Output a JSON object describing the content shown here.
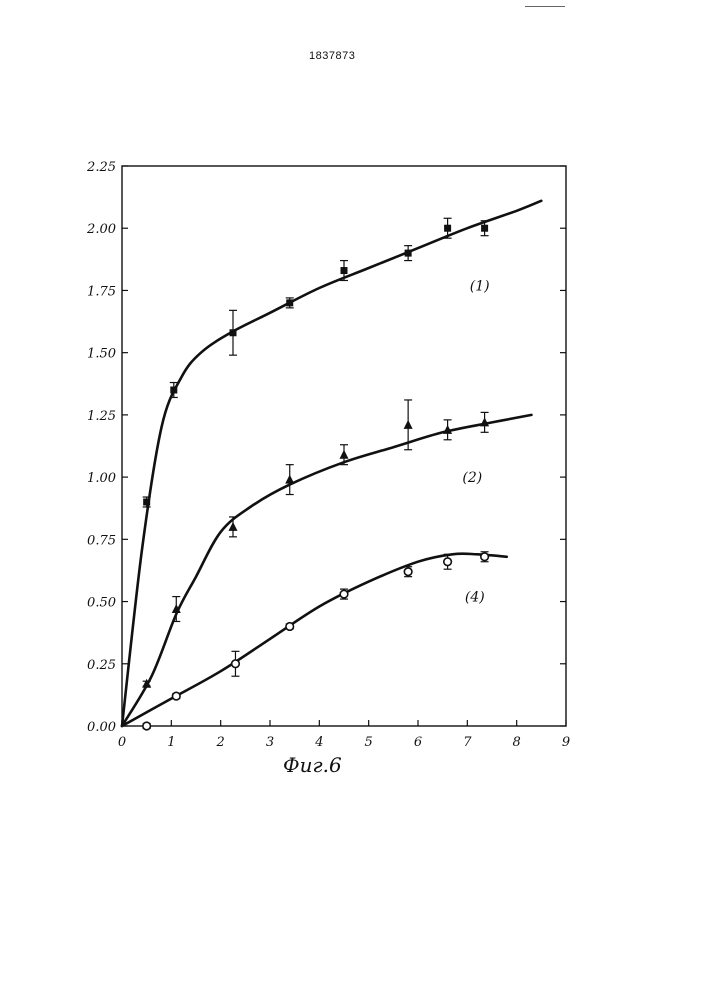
{
  "document_number": "1837873",
  "figure_caption": "Фиг.6",
  "chart_data": {
    "type": "line",
    "xlim": [
      0,
      9
    ],
    "ylim": [
      0,
      2.25
    ],
    "x_ticks": [
      "0",
      "1",
      "2",
      "3",
      "4",
      "5",
      "6",
      "7",
      "8",
      "9"
    ],
    "y_ticks": [
      "0.00",
      "0.25",
      "0.50",
      "0.75",
      "1.00",
      "1.25",
      "1.50",
      "1.75",
      "2.00",
      "2.25"
    ],
    "series": [
      {
        "name": "(1)",
        "marker": "square",
        "points": [
          {
            "x": 0.5,
            "y": 0.9,
            "err": 0.02
          },
          {
            "x": 1.05,
            "y": 1.35,
            "err": 0.03
          },
          {
            "x": 2.25,
            "y": 1.58,
            "err": 0.09
          },
          {
            "x": 3.4,
            "y": 1.7,
            "err": 0.02
          },
          {
            "x": 4.5,
            "y": 1.83,
            "err": 0.04
          },
          {
            "x": 5.8,
            "y": 1.9,
            "err": 0.03
          },
          {
            "x": 6.6,
            "y": 2.0,
            "err": 0.04
          },
          {
            "x": 7.35,
            "y": 2.0,
            "err": 0.03
          }
        ],
        "curve": [
          [
            0,
            0
          ],
          [
            0.4,
            0.7
          ],
          [
            0.8,
            1.2
          ],
          [
            1.2,
            1.4
          ],
          [
            1.6,
            1.5
          ],
          [
            2.2,
            1.58
          ],
          [
            3.0,
            1.66
          ],
          [
            4.0,
            1.76
          ],
          [
            5.0,
            1.84
          ],
          [
            6.0,
            1.92
          ],
          [
            7.0,
            2.0
          ],
          [
            8.0,
            2.07
          ],
          [
            8.5,
            2.11
          ]
        ]
      },
      {
        "name": "(2)",
        "marker": "triangle",
        "points": [
          {
            "x": 0.5,
            "y": 0.17,
            "err": 0.01
          },
          {
            "x": 1.1,
            "y": 0.47,
            "err": 0.05
          },
          {
            "x": 2.25,
            "y": 0.8,
            "err": 0.04
          },
          {
            "x": 3.4,
            "y": 0.99,
            "err": 0.06
          },
          {
            "x": 4.5,
            "y": 1.09,
            "err": 0.04
          },
          {
            "x": 5.8,
            "y": 1.21,
            "err": 0.1
          },
          {
            "x": 6.6,
            "y": 1.19,
            "err": 0.04
          },
          {
            "x": 7.35,
            "y": 1.22,
            "err": 0.04
          }
        ],
        "curve": [
          [
            0,
            0
          ],
          [
            0.6,
            0.2
          ],
          [
            1.1,
            0.45
          ],
          [
            1.5,
            0.6
          ],
          [
            2.0,
            0.78
          ],
          [
            2.6,
            0.88
          ],
          [
            3.4,
            0.97
          ],
          [
            4.5,
            1.06
          ],
          [
            5.5,
            1.12
          ],
          [
            6.5,
            1.18
          ],
          [
            7.5,
            1.22
          ],
          [
            8.3,
            1.25
          ]
        ]
      },
      {
        "name": "(4)",
        "marker": "circle",
        "points": [
          {
            "x": 0.5,
            "y": 0.0,
            "err": 0.01
          },
          {
            "x": 1.1,
            "y": 0.12,
            "err": 0.01
          },
          {
            "x": 2.3,
            "y": 0.25,
            "err": 0.05
          },
          {
            "x": 3.4,
            "y": 0.4,
            "err": 0.01
          },
          {
            "x": 4.5,
            "y": 0.53,
            "err": 0.02
          },
          {
            "x": 5.8,
            "y": 0.62,
            "err": 0.02
          },
          {
            "x": 6.6,
            "y": 0.66,
            "err": 0.03
          },
          {
            "x": 7.35,
            "y": 0.68,
            "err": 0.02
          }
        ],
        "curve": [
          [
            0,
            0
          ],
          [
            1,
            0.11
          ],
          [
            2,
            0.22
          ],
          [
            3,
            0.35
          ],
          [
            4,
            0.48
          ],
          [
            5,
            0.58
          ],
          [
            6,
            0.66
          ],
          [
            6.7,
            0.69
          ],
          [
            7.2,
            0.69
          ],
          [
            7.8,
            0.68
          ]
        ]
      }
    ]
  }
}
